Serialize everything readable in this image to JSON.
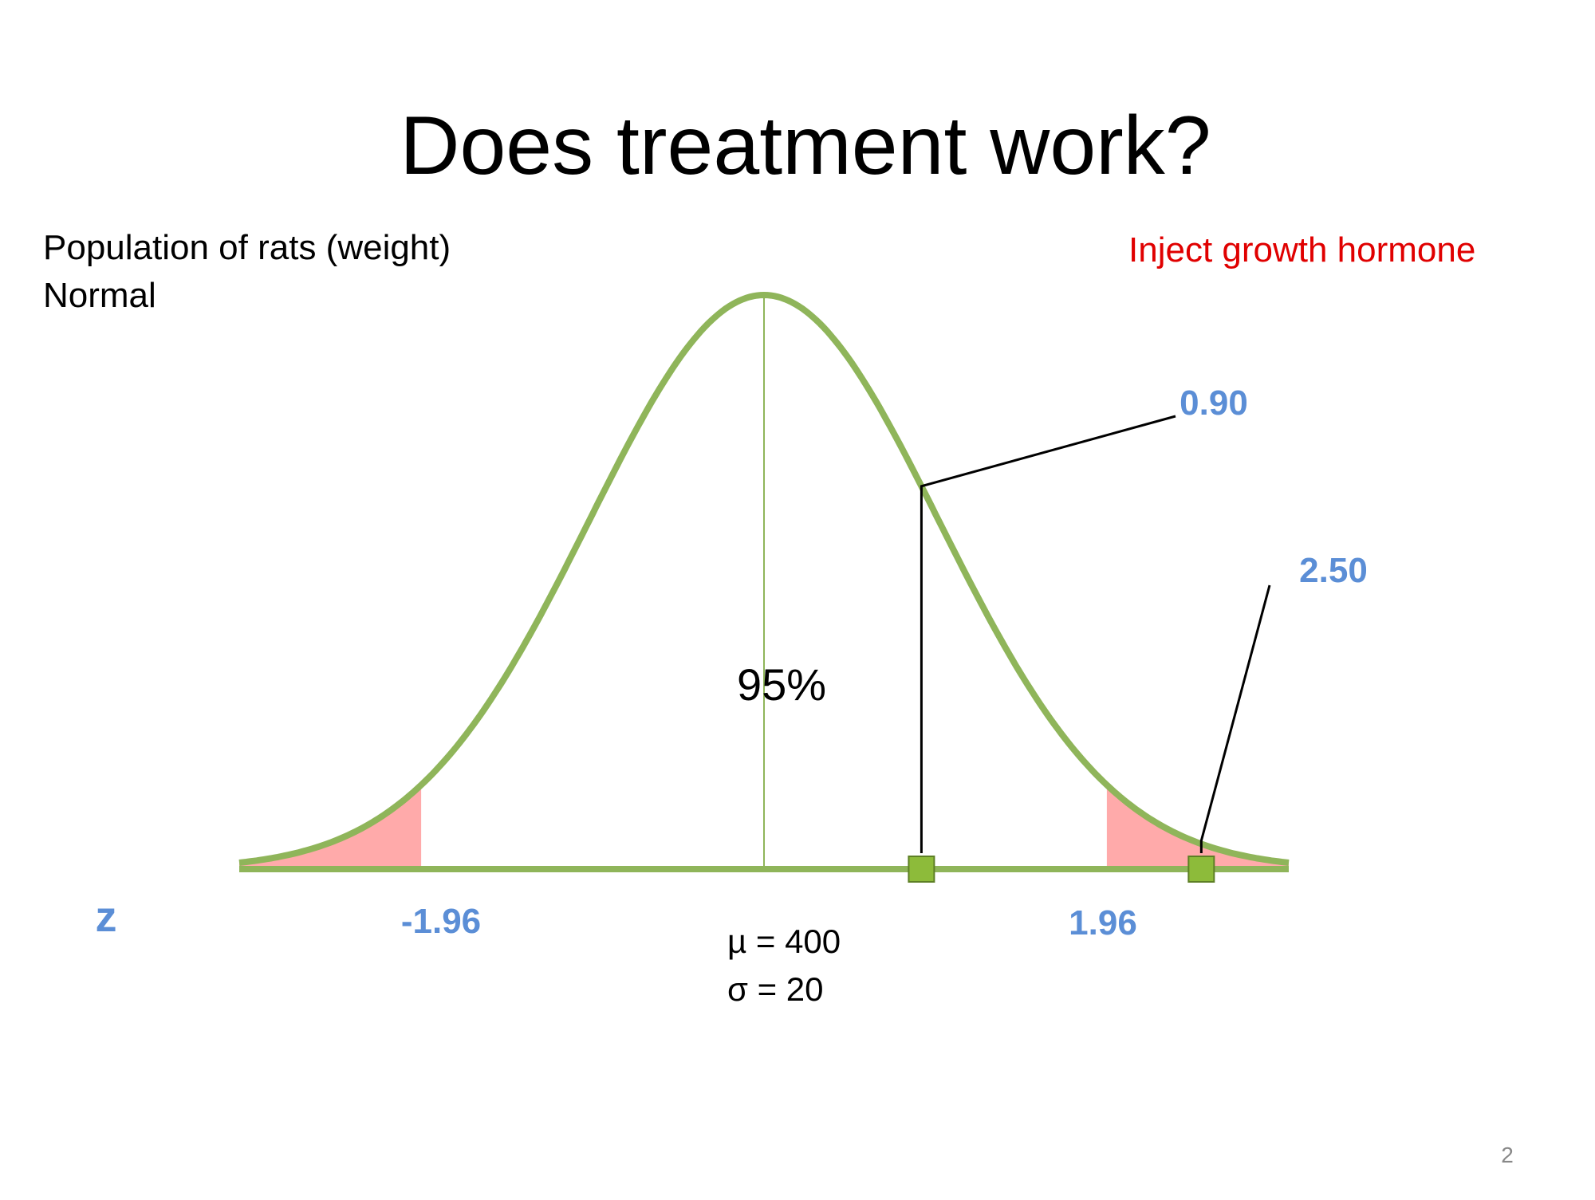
{
  "slide": {
    "title": "Does treatment work?",
    "subtitle_line1": "Population of rats (weight)",
    "subtitle_line2": "Normal",
    "treatment_label": "Inject growth hormone",
    "mu_label": "µ = 400",
    "sigma_label": "σ = 20",
    "page_number": "2"
  },
  "chart_data": {
    "type": "area",
    "distribution": "normal",
    "x_range": [
      -3,
      3
    ],
    "mean_z": 0,
    "z_axis_label": "z",
    "critical_z": [
      -1.96,
      1.96
    ],
    "critical_labels": [
      "-1.96",
      "1.96"
    ],
    "central_area_label": "95%",
    "observed_points": [
      {
        "z": 0.9,
        "label": "0.90"
      },
      {
        "z": 2.5,
        "label": "2.50"
      }
    ],
    "colors": {
      "curve": "#8fb55a",
      "tails": "#ffaaaa",
      "z_labels": "#5b8ed6",
      "treatment": "#e00000",
      "marker": "#8dbb3a"
    },
    "grid": false
  }
}
